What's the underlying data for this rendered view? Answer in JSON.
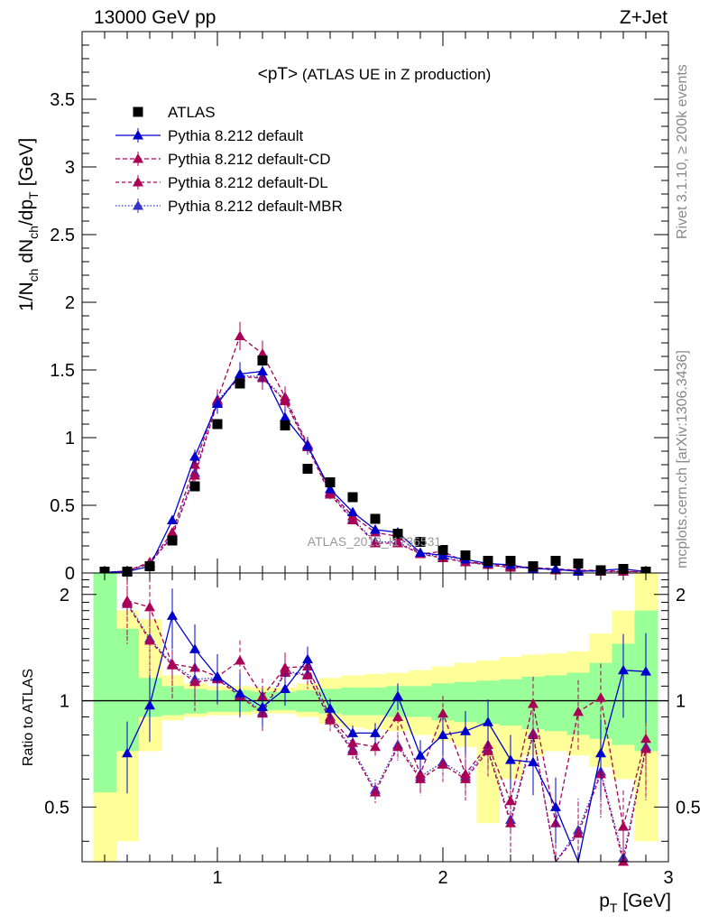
{
  "header": {
    "left": "13000 GeV pp",
    "right": "Z+Jet"
  },
  "side_labels": {
    "top": "Rivet 3.1.10, ≥ 200k events",
    "bottom": "mcplots.cern.ch [arXiv:1306.3436]"
  },
  "watermark": "ATLAS_2019_I1736531",
  "colors": {
    "atlas": "#000000",
    "default": "#0000cc",
    "cd": "#aa0055",
    "dl": "#aa0055",
    "mbr": "#3333cc",
    "band_inner": "#99ff99",
    "band_outer": "#ffff99"
  },
  "chart_data": [
    {
      "type": "scatter",
      "panel": "main",
      "title_main": "<pT>",
      "title_sub": " (ATLAS UE in Z production)",
      "ylabel": "1/N_ch dN_ch/dp_T [GeV]",
      "ylabel_parts": [
        "1/N",
        "ch",
        " dN",
        "ch",
        "/dp",
        "T",
        " [GeV]"
      ],
      "xlim": [
        0.4,
        3.0
      ],
      "ylim": [
        0,
        4.0
      ],
      "yticks": [
        0,
        0.5,
        1,
        1.5,
        2,
        2.5,
        3,
        3.5
      ],
      "ytick_labels": [
        "0",
        "0.5",
        "1",
        "1.5",
        "2",
        "2.5",
        "3",
        "3.5"
      ],
      "x": [
        0.5,
        0.6,
        0.7,
        0.8,
        0.9,
        1.0,
        1.1,
        1.2,
        1.3,
        1.4,
        1.5,
        1.6,
        1.7,
        1.8,
        1.9,
        2.0,
        2.1,
        2.2,
        2.3,
        2.4,
        2.5,
        2.6,
        2.7,
        2.8,
        2.9
      ],
      "legend": [
        "ATLAS",
        "Pythia 8.212 default",
        "Pythia 8.212 default-CD",
        "Pythia 8.212 default-DL",
        "Pythia 8.212 default-MBR"
      ],
      "series": [
        {
          "name": "ATLAS",
          "values": [
            0.01,
            0.01,
            0.05,
            0.24,
            0.64,
            1.1,
            1.4,
            1.57,
            1.09,
            0.77,
            0.67,
            0.56,
            0.4,
            0.29,
            0.23,
            0.17,
            0.13,
            0.09,
            0.09,
            0.05,
            0.09,
            0.07,
            0.02,
            0.03,
            0.01
          ]
        },
        {
          "name": "Pythia 8.212 default",
          "values": [
            0.005,
            0.01,
            0.05,
            0.39,
            0.86,
            1.25,
            1.47,
            1.49,
            1.15,
            0.94,
            0.62,
            0.45,
            0.32,
            0.3,
            0.15,
            0.13,
            0.1,
            0.07,
            0.06,
            0.03,
            0.03,
            0.01,
            0.02,
            0.03,
            0.01
          ]
        },
        {
          "name": "Pythia 8.212 default-CD",
          "values": [
            0.005,
            0.015,
            0.08,
            0.3,
            0.8,
            1.28,
            1.75,
            1.62,
            1.3,
            0.95,
            0.6,
            0.42,
            0.3,
            0.27,
            0.14,
            0.16,
            0.08,
            0.07,
            0.05,
            0.04,
            0.03,
            0.02,
            0.02,
            0.01,
            0.01
          ]
        },
        {
          "name": "Pythia 8.212 default-DL",
          "values": [
            0.005,
            0.015,
            0.07,
            0.27,
            0.72,
            1.26,
            1.45,
            1.44,
            1.27,
            0.93,
            0.58,
            0.39,
            0.22,
            0.22,
            0.14,
            0.11,
            0.08,
            0.06,
            0.04,
            0.04,
            0.02,
            0.02,
            0.01,
            0.01,
            0.01
          ]
        },
        {
          "name": "Pythia 8.212 default-MBR",
          "values": [
            0.005,
            0.015,
            0.07,
            0.28,
            0.74,
            1.27,
            1.46,
            1.45,
            1.28,
            0.94,
            0.59,
            0.4,
            0.23,
            0.23,
            0.14,
            0.12,
            0.08,
            0.06,
            0.04,
            0.04,
            0.02,
            0.02,
            0.01,
            0.01,
            0.01
          ]
        }
      ]
    },
    {
      "type": "line",
      "panel": "ratio",
      "ylabel": "Ratio to ATLAS",
      "xlabel_parts": [
        "p",
        "T",
        " [GeV]"
      ],
      "xlim": [
        0.4,
        3.0
      ],
      "ylim": [
        0.35,
        2.3
      ],
      "xticks": [
        1,
        2,
        3
      ],
      "xtick_labels": [
        "1",
        "2",
        "3"
      ],
      "yticks": [
        0.5,
        1,
        2
      ],
      "ytick_labels": [
        "0.5",
        "1",
        "2"
      ],
      "x": [
        0.5,
        0.6,
        0.7,
        0.8,
        0.9,
        1.0,
        1.1,
        1.2,
        1.3,
        1.4,
        1.5,
        1.6,
        1.7,
        1.8,
        1.9,
        2.0,
        2.1,
        2.2,
        2.3,
        2.4,
        2.5,
        2.6,
        2.7,
        2.8,
        2.9
      ],
      "band_inner": [
        0.55,
        0.72,
        0.9,
        0.91,
        0.92,
        0.93,
        0.93,
        0.94,
        0.94,
        0.93,
        0.92,
        0.91,
        0.91,
        0.9,
        0.9,
        0.88,
        0.87,
        0.86,
        0.85,
        0.83,
        0.82,
        0.8,
        0.78,
        0.75,
        0.72
      ],
      "band_inner_hi": [
        2.4,
        1.6,
        1.16,
        1.1,
        1.08,
        1.07,
        1.07,
        1.06,
        1.06,
        1.07,
        1.08,
        1.09,
        1.09,
        1.1,
        1.1,
        1.12,
        1.13,
        1.14,
        1.15,
        1.17,
        1.18,
        1.2,
        1.28,
        1.45,
        1.8
      ],
      "band_outer_lo": [
        0.3,
        0.4,
        0.72,
        0.88,
        0.9,
        0.91,
        0.91,
        0.92,
        0.92,
        0.9,
        0.86,
        0.84,
        0.83,
        0.82,
        0.8,
        0.77,
        0.74,
        0.45,
        0.6,
        0.7,
        0.72,
        0.7,
        0.65,
        0.6,
        0.4
      ],
      "band_outer_hi": [
        2.5,
        1.8,
        1.7,
        1.18,
        1.12,
        1.1,
        1.1,
        1.09,
        1.09,
        1.12,
        1.16,
        1.18,
        1.19,
        1.2,
        1.22,
        1.25,
        1.28,
        1.3,
        1.33,
        1.35,
        1.36,
        1.38,
        1.55,
        1.8,
        2.3
      ],
      "series": [
        {
          "name": "Pythia 8.212 default",
          "values": [
            null,
            0.71,
            0.97,
            1.74,
            1.4,
            1.17,
            1.05,
            0.96,
            1.08,
            1.31,
            0.95,
            0.81,
            0.81,
            1.03,
            0.7,
            0.8,
            0.82,
            0.87,
            0.68,
            0.67,
            0.5,
            0.3,
            0.71,
            1.22,
            1.21
          ]
        },
        {
          "name": "Pythia 8.212 default-CD",
          "values": [
            null,
            1.92,
            1.84,
            1.27,
            1.24,
            1.17,
            1.3,
            1.03,
            1.24,
            1.25,
            0.9,
            0.76,
            0.74,
            0.9,
            0.62,
            0.92,
            0.62,
            0.75,
            0.52,
            0.98,
            0.45,
            0.93,
            1.02,
            0.44,
            0.78
          ]
        },
        {
          "name": "Pythia 8.212 default-DL",
          "values": [
            null,
            1.88,
            1.48,
            1.26,
            1.13,
            1.15,
            1.03,
            0.92,
            1.2,
            1.18,
            0.88,
            0.72,
            0.55,
            0.74,
            0.6,
            0.66,
            0.6,
            0.72,
            0.45,
            0.8,
            0.28,
            0.42,
            0.62,
            0.35,
            0.73
          ]
        },
        {
          "name": "Pythia 8.212 default-MBR",
          "values": [
            null,
            1.9,
            1.5,
            1.27,
            1.15,
            1.16,
            1.04,
            0.93,
            1.21,
            1.19,
            0.89,
            0.73,
            0.56,
            0.75,
            0.61,
            0.67,
            0.61,
            0.73,
            0.46,
            0.81,
            0.29,
            0.43,
            0.63,
            0.36,
            0.74
          ]
        }
      ]
    }
  ]
}
